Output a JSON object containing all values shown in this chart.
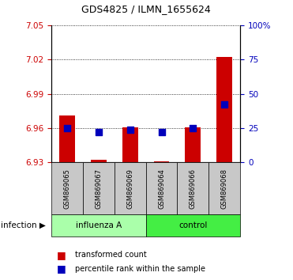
{
  "title": "GDS4825 / ILMN_1655624",
  "samples": [
    "GSM869065",
    "GSM869067",
    "GSM869069",
    "GSM869064",
    "GSM869066",
    "GSM869068"
  ],
  "transformed_counts": [
    6.971,
    6.932,
    6.961,
    6.931,
    6.961,
    7.022
  ],
  "base_value": 6.93,
  "percentile_ranks": [
    25,
    22,
    24,
    22,
    25,
    42
  ],
  "percentile_scale_max": 100,
  "ylim_min": 6.93,
  "ylim_max": 7.05,
  "yticks": [
    6.93,
    6.96,
    6.99,
    7.02,
    7.05
  ],
  "right_yticks": [
    0,
    25,
    50,
    75,
    100
  ],
  "right_yticklabels": [
    "0",
    "25",
    "50",
    "75",
    "100%"
  ],
  "bar_color": "#cc0000",
  "dot_color": "#0000bb",
  "bar_width": 0.5,
  "dot_size": 30,
  "left_tick_color": "#cc0000",
  "right_tick_color": "#0000bb",
  "sample_box_color": "#c8c8c8",
  "influenza_color": "#aaffaa",
  "control_color": "#44ee44",
  "infection_label": "infection",
  "legend_entries": [
    "transformed count",
    "percentile rank within the sample"
  ],
  "group_defs": [
    {
      "start": 0,
      "end": 3,
      "label": "influenza A",
      "color": "#aaffaa"
    },
    {
      "start": 3,
      "end": 6,
      "label": "control",
      "color": "#44ee44"
    }
  ]
}
